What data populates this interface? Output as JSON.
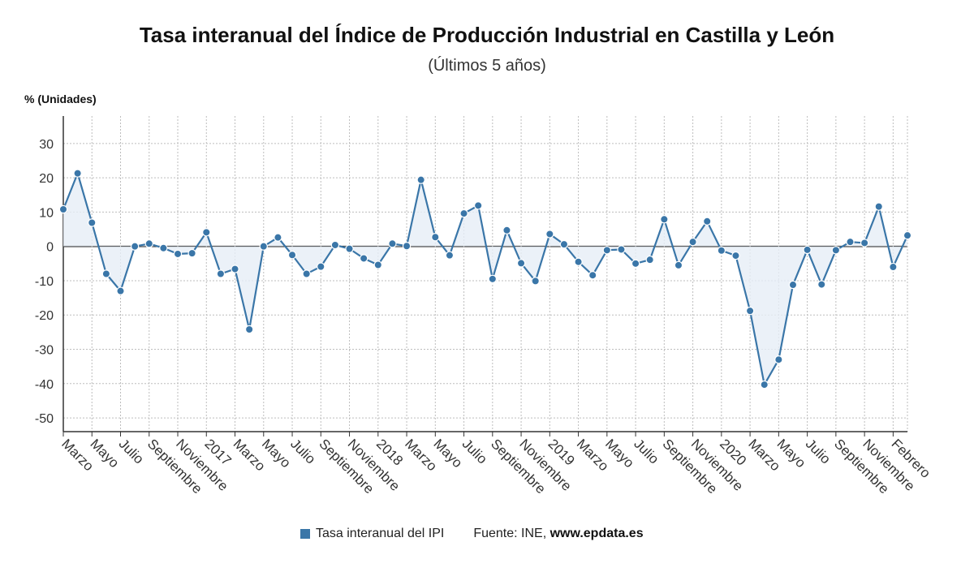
{
  "title": "Tasa interanual del Índice de Producción Industrial en Castilla y León",
  "subtitle": "(Últimos 5 años)",
  "legend": {
    "label": "Tasa interanual del IPI"
  },
  "source": {
    "prefix": "Fuente: INE, ",
    "site": "www.epdata.es"
  },
  "colors": {
    "series": "#3a76a8",
    "fill": "#e6eef6",
    "grid": "#bdbdbd",
    "axis": "#333333"
  },
  "chart_data": {
    "type": "line",
    "title": "Tasa interanual del Índice de Producción Industrial en Castilla y León",
    "subtitle": "(Últimos 5 años)",
    "ylabel": "% (Unidades)",
    "ylim": [
      -54,
      38
    ],
    "yticks": [
      30,
      20,
      10,
      0,
      -10,
      -20,
      -30,
      -40,
      -50
    ],
    "grid": true,
    "legend_position": "bottom",
    "x_tick_labels": [
      "Marzo",
      "Mayo",
      "Julio",
      "Septiembre",
      "Noviembre",
      "2017",
      "Marzo",
      "Mayo",
      "Julio",
      "Septiembre",
      "Noviembre",
      "2018",
      "Marzo",
      "Mayo",
      "Julio",
      "Septiembre",
      "Noviembre",
      "2019",
      "Marzo",
      "Mayo",
      "Julio",
      "Septiembre",
      "Noviembre",
      "2020",
      "Marzo",
      "Mayo",
      "Julio",
      "Septiembre",
      "Noviembre",
      "Febrero"
    ],
    "x": [
      "2016-03",
      "2016-04",
      "2016-05",
      "2016-06",
      "2016-07",
      "2016-08",
      "2016-09",
      "2016-10",
      "2016-11",
      "2016-12",
      "2017-01",
      "2017-02",
      "2017-03",
      "2017-04",
      "2017-05",
      "2017-06",
      "2017-07",
      "2017-08",
      "2017-09",
      "2017-10",
      "2017-11",
      "2017-12",
      "2018-01",
      "2018-02",
      "2018-03",
      "2018-04",
      "2018-05",
      "2018-06",
      "2018-07",
      "2018-08",
      "2018-09",
      "2018-10",
      "2018-11",
      "2018-12",
      "2019-01",
      "2019-02",
      "2019-03",
      "2019-04",
      "2019-05",
      "2019-06",
      "2019-07",
      "2019-08",
      "2019-09",
      "2019-10",
      "2019-11",
      "2019-12",
      "2020-01",
      "2020-02",
      "2020-03",
      "2020-04",
      "2020-05",
      "2020-06",
      "2020-07",
      "2020-08",
      "2020-09",
      "2020-10",
      "2020-11",
      "2020-12",
      "2021-01",
      "2021-02"
    ],
    "series": [
      {
        "name": "Tasa interanual del IPI",
        "values": [
          10.8,
          21.3,
          6.9,
          -8.0,
          -13.0,
          0.0,
          0.8,
          -0.5,
          -2.2,
          -2.0,
          4.1,
          -8.0,
          -6.6,
          -24.2,
          0.0,
          2.6,
          -2.5,
          -8.0,
          -5.9,
          0.4,
          -0.7,
          -3.5,
          -5.4,
          0.8,
          0.1,
          19.4,
          2.7,
          -2.6,
          9.6,
          11.9,
          -9.5,
          4.7,
          -4.9,
          -10.1,
          3.6,
          0.6,
          -4.5,
          -8.4,
          -1.1,
          -0.9,
          -5.0,
          -3.9,
          7.9,
          -5.5,
          1.3,
          7.3,
          -1.2,
          -2.7,
          -18.8,
          -40.3,
          -33.0,
          -11.2,
          -1.0,
          -11.1,
          -1.1,
          1.3,
          1.0,
          11.6,
          -6.0,
          3.2
        ]
      }
    ]
  }
}
